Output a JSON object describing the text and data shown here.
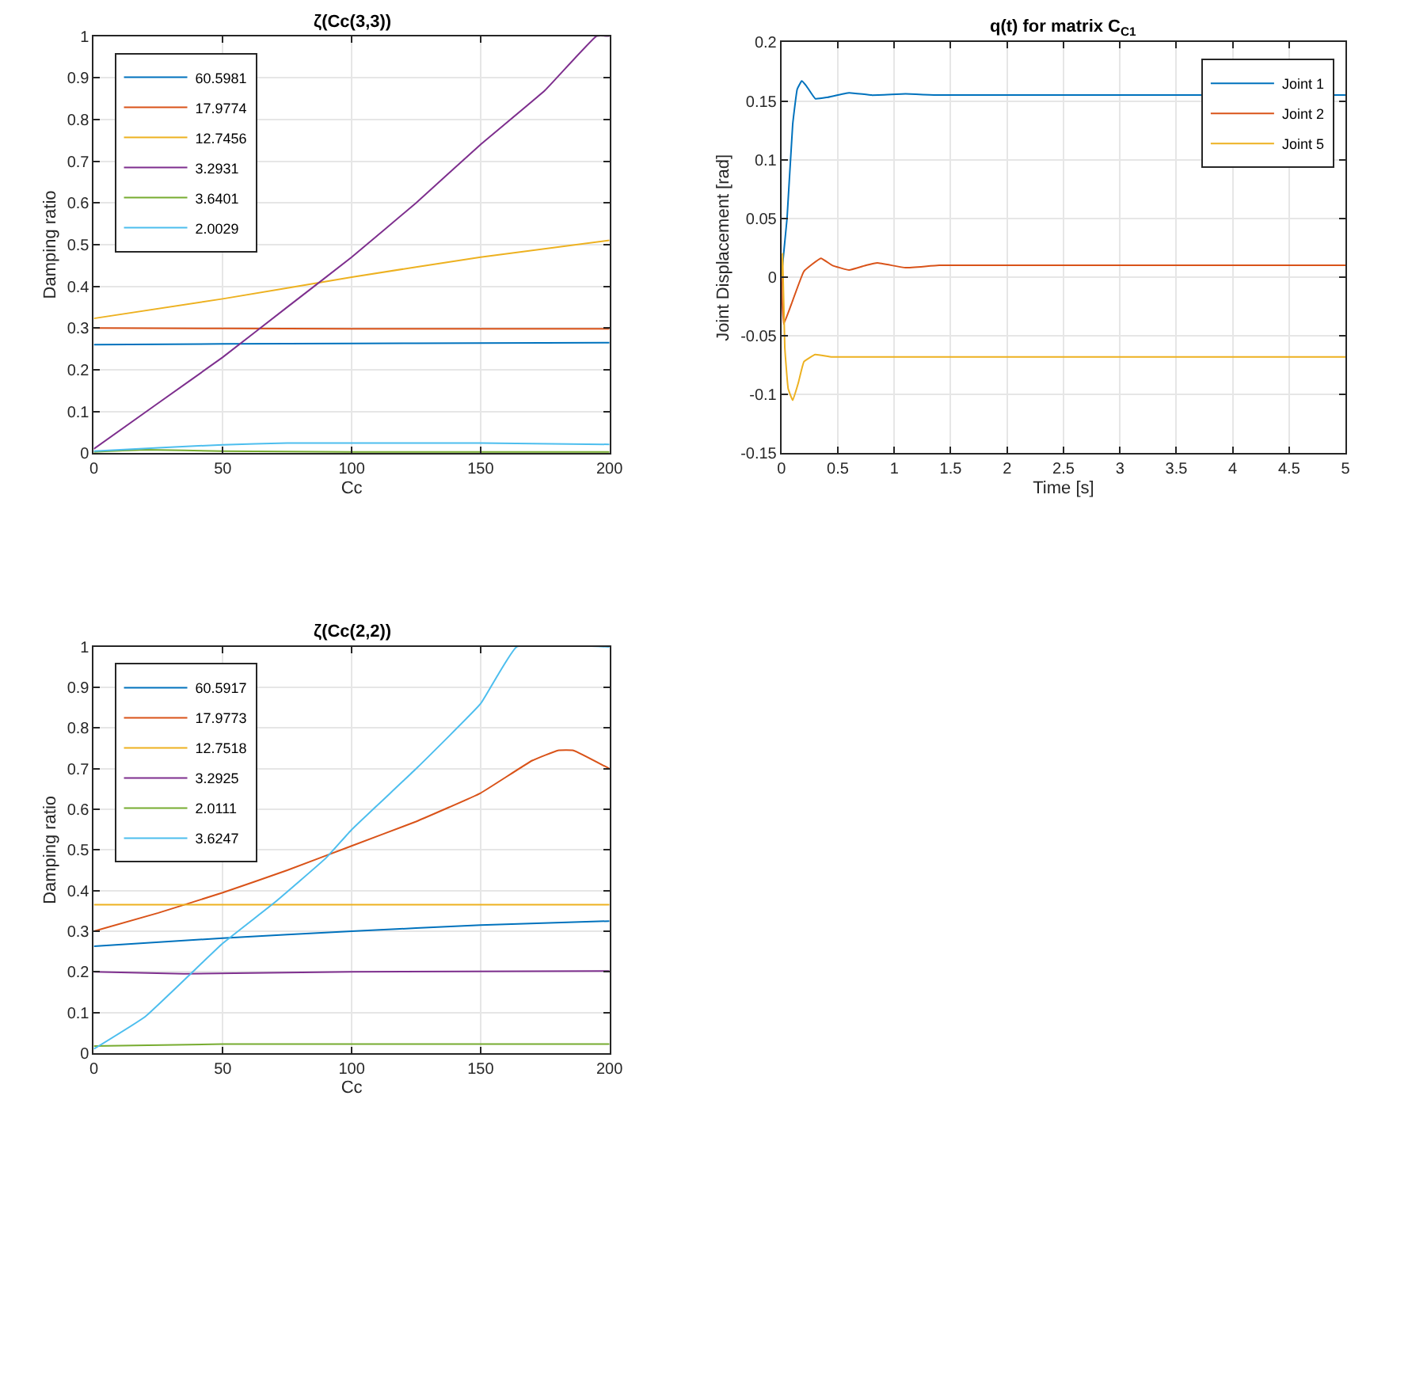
{
  "chart_data": [
    {
      "type": "line",
      "title": "ζ(Cc(3,3))",
      "xlabel": "Cc",
      "ylabel": "Damping ratio",
      "xlim": [
        0,
        200
      ],
      "xticks": [
        0,
        50,
        100,
        150,
        200
      ],
      "ylim": [
        0,
        1
      ],
      "yticks": [
        0,
        0.1,
        0.2,
        0.3,
        0.4,
        0.5,
        0.6,
        0.7,
        0.8,
        0.9,
        1
      ],
      "grid": true,
      "legend": "top left",
      "series": [
        {
          "name": "60.5981",
          "color": "#0072bd",
          "x": [
            0,
            50,
            100,
            150,
            200
          ],
          "values": [
            0.26,
            0.262,
            0.263,
            0.264,
            0.265
          ]
        },
        {
          "name": "17.9774",
          "color": "#d95319",
          "x": [
            0,
            50,
            100,
            150,
            200
          ],
          "values": [
            0.3,
            0.299,
            0.298,
            0.298,
            0.298
          ]
        },
        {
          "name": "12.7456",
          "color": "#edb120",
          "x": [
            0,
            50,
            100,
            150,
            200
          ],
          "values": [
            0.323,
            0.37,
            0.422,
            0.47,
            0.51
          ]
        },
        {
          "name": "3.2931",
          "color": "#7e2f8e",
          "x": [
            0,
            25,
            50,
            75,
            100,
            125,
            150,
            175,
            195,
            200
          ],
          "values": [
            0.01,
            0.12,
            0.23,
            0.35,
            0.47,
            0.6,
            0.74,
            0.87,
            1.0,
            1.0
          ]
        },
        {
          "name": "3.6401",
          "color": "#77ac30",
          "x": [
            0,
            20,
            50,
            100,
            200
          ],
          "values": [
            0.003,
            0.008,
            0.005,
            0.003,
            0.003
          ]
        },
        {
          "name": "2.0029",
          "color": "#4dbeee",
          "x": [
            0,
            25,
            50,
            75,
            100,
            150,
            200
          ],
          "values": [
            0.005,
            0.013,
            0.02,
            0.024,
            0.024,
            0.024,
            0.021
          ]
        }
      ]
    },
    {
      "type": "line",
      "title": "q(t) for matrix C$_{C1}$",
      "xlabel": "Time [s]",
      "ylabel": "Joint Displacement [rad]",
      "xlim": [
        0,
        5
      ],
      "xticks": [
        0,
        0.5,
        1,
        1.5,
        2,
        2.5,
        3,
        3.5,
        4,
        4.5,
        5
      ],
      "ylim": [
        -0.15,
        0.2
      ],
      "yticks": [
        -0.15,
        -0.1,
        -0.05,
        0,
        0.05,
        0.1,
        0.15,
        0.2
      ],
      "grid": true,
      "legend": "top right",
      "series": [
        {
          "name": "Joint 1",
          "color": "#0072bd",
          "x": [
            0,
            0.05,
            0.1,
            0.14,
            0.18,
            0.22,
            0.3,
            0.4,
            0.6,
            0.8,
            1.1,
            1.4,
            5
          ],
          "values": [
            0,
            0.05,
            0.13,
            0.16,
            0.167,
            0.163,
            0.152,
            0.153,
            0.157,
            0.155,
            0.156,
            0.155,
            0.155
          ]
        },
        {
          "name": "Joint 2",
          "color": "#d95319",
          "x": [
            0,
            0.02,
            0.1,
            0.2,
            0.35,
            0.45,
            0.6,
            0.75,
            0.85,
            1.1,
            1.4,
            5
          ],
          "values": [
            0,
            -0.04,
            -0.02,
            0.005,
            0.016,
            0.01,
            0.006,
            0.01,
            0.012,
            0.008,
            0.01,
            0.01
          ]
        },
        {
          "name": "Joint 5",
          "color": "#edb120",
          "x": [
            0,
            0.01,
            0.03,
            0.06,
            0.1,
            0.15,
            0.2,
            0.3,
            0.45,
            5
          ],
          "values": [
            0,
            0.02,
            -0.06,
            -0.095,
            -0.105,
            -0.09,
            -0.072,
            -0.066,
            -0.068,
            -0.068
          ]
        }
      ]
    },
    {
      "type": "line",
      "title": "ζ(Cc(2,2))",
      "xlabel": "Cc",
      "ylabel": "Damping ratio",
      "xlim": [
        0,
        200
      ],
      "xticks": [
        0,
        50,
        100,
        150,
        200
      ],
      "ylim": [
        0,
        1
      ],
      "yticks": [
        0,
        0.1,
        0.2,
        0.3,
        0.4,
        0.5,
        0.6,
        0.7,
        0.8,
        0.9,
        1
      ],
      "grid": true,
      "legend": "top left",
      "series": [
        {
          "name": "60.5917",
          "color": "#0072bd",
          "x": [
            0,
            50,
            100,
            150,
            200
          ],
          "values": [
            0.263,
            0.283,
            0.3,
            0.315,
            0.325
          ]
        },
        {
          "name": "17.9773",
          "color": "#d95319",
          "x": [
            0,
            25,
            50,
            75,
            100,
            125,
            150,
            170,
            180,
            186,
            200
          ],
          "values": [
            0.3,
            0.345,
            0.395,
            0.45,
            0.51,
            0.57,
            0.64,
            0.72,
            0.745,
            0.745,
            0.7
          ]
        },
        {
          "name": "12.7518",
          "color": "#edb120",
          "x": [
            0,
            200
          ],
          "values": [
            0.365,
            0.365
          ]
        },
        {
          "name": "3.2925",
          "color": "#7e2f8e",
          "x": [
            0,
            35,
            100,
            200
          ],
          "values": [
            0.2,
            0.195,
            0.2,
            0.202
          ]
        },
        {
          "name": "2.0111",
          "color": "#77ac30",
          "x": [
            0,
            50,
            200
          ],
          "values": [
            0.017,
            0.022,
            0.022
          ]
        },
        {
          "name": "3.6247",
          "color": "#4dbeee",
          "x": [
            0,
            20,
            50,
            70,
            90,
            100,
            125,
            150,
            164,
            200
          ],
          "values": [
            0.01,
            0.09,
            0.27,
            0.37,
            0.48,
            0.55,
            0.7,
            0.86,
            1.0,
            1.0
          ]
        }
      ]
    }
  ]
}
